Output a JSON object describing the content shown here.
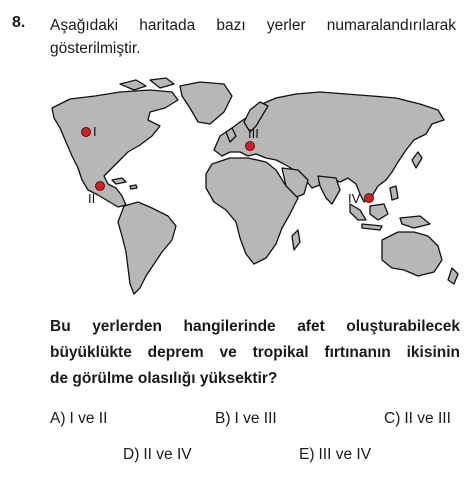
{
  "question": {
    "number": "8.",
    "intro": "Aşağıdaki haritada bazı yerler numaralandırılarak gösterilmiştir.",
    "prompt_lines": [
      "Bu yerlerden hangilerinde afet oluşturabilecek",
      "büyüklükte deprem ve tropikal fırtınanın ikisinin",
      "de görülme olasılığı yüksektir?"
    ]
  },
  "map": {
    "land_color": "#b7b7b7",
    "outline_color": "#111111",
    "marker_color": "#e3171b",
    "markers": [
      {
        "label": "I"
      },
      {
        "label": "II"
      },
      {
        "label": "III"
      },
      {
        "label": "IV"
      }
    ]
  },
  "options": [
    {
      "letter": "A)",
      "text": "I ve II"
    },
    {
      "letter": "B)",
      "text": "I ve III"
    },
    {
      "letter": "C)",
      "text": "II ve III"
    },
    {
      "letter": "D)",
      "text": "II ve IV"
    },
    {
      "letter": "E)",
      "text": "III ve IV"
    }
  ]
}
